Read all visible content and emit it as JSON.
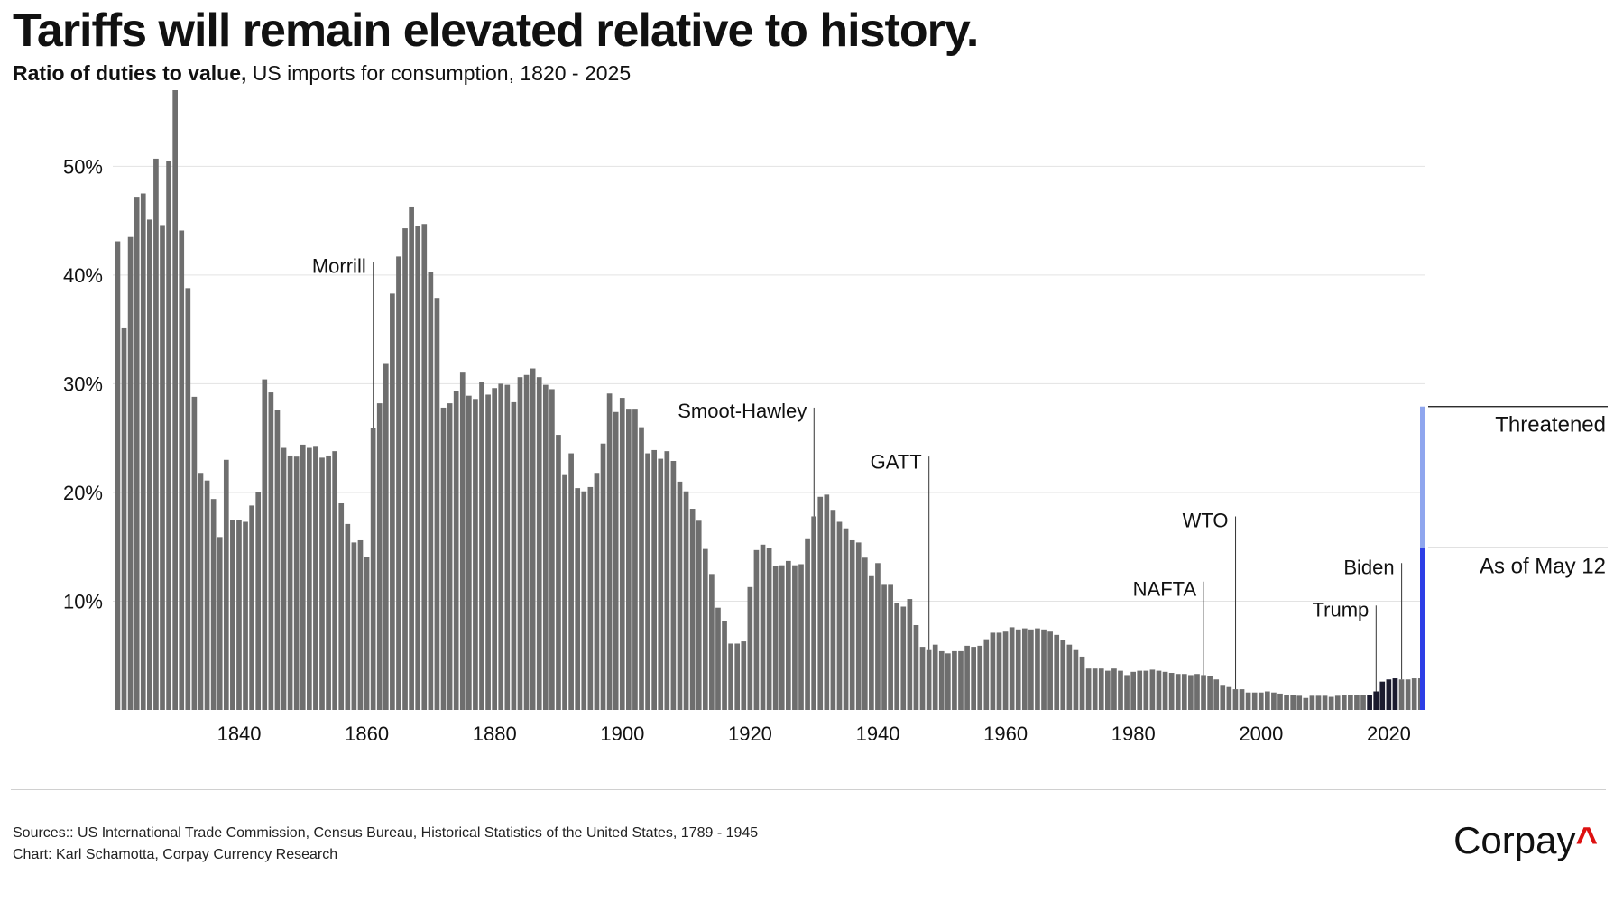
{
  "title": "Tariffs will remain elevated relative to history.",
  "subtitle_bold": "Ratio of duties to value,",
  "subtitle_rest": " US imports for consumption, 1820 - 2025",
  "footer": {
    "sources": "Sources:: US International Trade Commission, Census Bureau, Historical Statistics of the United States, 1789 - 1945",
    "credit": "Chart: Karl Schamotta, Corpay Currency Research"
  },
  "logo": {
    "text": "Corpay",
    "mark": "^"
  },
  "colors": {
    "bar": "#6e6e6e",
    "recent": "#1a1a2e",
    "as_of": "#2d3ee6",
    "threatened": "#8fa6ee",
    "grid": "#e3e3e3"
  },
  "chart_data": {
    "type": "bar",
    "x_start": 1821,
    "xlim": [
      1821,
      2025
    ],
    "ylim": [
      0,
      57
    ],
    "grid": true,
    "y_ticks": [
      {
        "value": 10,
        "label": "10%"
      },
      {
        "value": 20,
        "label": "20%"
      },
      {
        "value": 30,
        "label": "30%"
      },
      {
        "value": 40,
        "label": "40%"
      },
      {
        "value": 50,
        "label": "50%"
      }
    ],
    "x_ticks": [
      1840,
      1860,
      1880,
      1900,
      1920,
      1940,
      1960,
      1980,
      2000,
      2020
    ],
    "values": [
      43.1,
      35.1,
      43.5,
      47.2,
      47.5,
      45.1,
      50.7,
      44.6,
      50.5,
      57.2,
      44.1,
      38.8,
      28.8,
      21.8,
      21.1,
      19.4,
      15.9,
      23.0,
      17.5,
      17.5,
      17.3,
      18.8,
      20.0,
      30.4,
      29.2,
      27.6,
      24.1,
      23.4,
      23.3,
      24.4,
      24.1,
      24.2,
      23.2,
      23.4,
      23.8,
      19.0,
      17.1,
      15.4,
      15.6,
      14.1,
      25.9,
      28.2,
      31.9,
      38.3,
      41.7,
      44.3,
      46.3,
      44.5,
      44.7,
      40.3,
      37.9,
      27.8,
      28.2,
      29.3,
      31.1,
      28.9,
      28.6,
      30.2,
      29.0,
      29.6,
      30.0,
      29.9,
      28.3,
      30.6,
      30.8,
      31.4,
      30.6,
      29.9,
      29.5,
      25.3,
      21.6,
      23.6,
      20.4,
      20.1,
      20.5,
      21.8,
      24.5,
      29.1,
      27.4,
      28.7,
      27.7,
      27.7,
      26.0,
      23.6,
      23.9,
      23.1,
      23.8,
      22.9,
      21.0,
      20.1,
      18.5,
      17.4,
      14.8,
      12.5,
      9.4,
      8.2,
      6.1,
      6.1,
      6.3,
      11.3,
      14.7,
      15.2,
      14.9,
      13.2,
      13.3,
      13.7,
      13.3,
      13.4,
      15.7,
      17.8,
      19.6,
      19.8,
      18.4,
      17.3,
      16.7,
      15.6,
      15.4,
      14.0,
      12.3,
      13.5,
      11.5,
      11.5,
      9.8,
      9.5,
      10.2,
      7.8,
      5.8,
      5.5,
      6.0,
      5.4,
      5.2,
      5.4,
      5.4,
      5.9,
      5.8,
      5.9,
      6.5,
      7.1,
      7.1,
      7.2,
      7.6,
      7.4,
      7.5,
      7.4,
      7.5,
      7.4,
      7.2,
      6.9,
      6.4,
      6.0,
      5.5,
      4.9,
      3.8,
      3.8,
      3.8,
      3.6,
      3.8,
      3.6,
      3.2,
      3.5,
      3.6,
      3.6,
      3.7,
      3.6,
      3.5,
      3.4,
      3.3,
      3.3,
      3.2,
      3.3,
      3.2,
      3.1,
      2.8,
      2.3,
      2.1,
      1.9,
      1.9,
      1.6,
      1.6,
      1.6,
      1.7,
      1.6,
      1.5,
      1.4,
      1.4,
      1.3,
      1.1,
      1.3,
      1.3,
      1.3,
      1.2,
      1.3,
      1.4,
      1.4,
      1.4,
      1.4,
      1.4,
      1.7,
      2.6,
      2.8,
      2.9,
      2.8,
      2.8,
      2.9,
      2.9
    ],
    "highlight_series": {
      "first_year": 2017,
      "last_year": 2021,
      "color_key": "recent"
    },
    "annotations": [
      {
        "label": "Morrill",
        "year": 1861,
        "label_y": 40.2,
        "line_top": 41.2,
        "side": "left"
      },
      {
        "label": "Smoot-Hawley",
        "year": 1930,
        "label_y": 26.9,
        "line_top": 27.8,
        "side": "left"
      },
      {
        "label": "GATT",
        "year": 1948,
        "label_y": 22.2,
        "line_top": 23.3,
        "side": "left"
      },
      {
        "label": "WTO",
        "year": 1996,
        "label_y": 16.8,
        "line_top": 17.8,
        "side": "left"
      },
      {
        "label": "NAFTA",
        "year": 1991,
        "label_y": 10.5,
        "line_top": 11.8,
        "side": "left"
      },
      {
        "label": "Trump",
        "year": 2018,
        "label_y": 8.6,
        "line_top": 9.6,
        "side": "left"
      },
      {
        "label": "Biden",
        "year": 2022,
        "label_y": 12.5,
        "line_top": 13.5,
        "side": "left"
      }
    ],
    "current_tariff": {
      "label": "As of May 12",
      "value": 14.9
    },
    "threatened_tariff": {
      "label": "Threatened",
      "value": 27.9
    }
  }
}
